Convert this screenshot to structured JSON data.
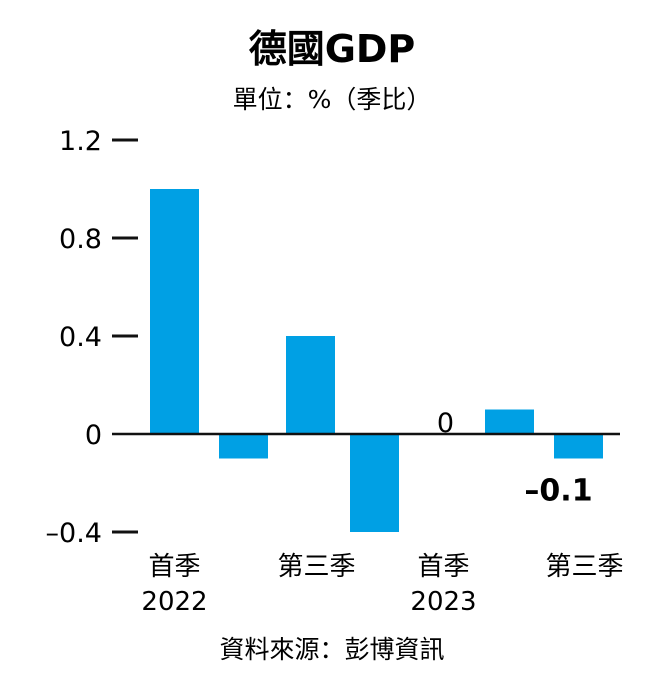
{
  "chart_data": {
    "type": "bar",
    "title": "德國GDP",
    "subtitle": "單位：%（季比）",
    "categories": [
      "2022 Q1",
      "2022 Q2",
      "2022 Q3",
      "2022 Q4",
      "2023 Q1",
      "2023 Q2",
      "2023 Q3"
    ],
    "values": [
      1.0,
      -0.1,
      0.4,
      -0.4,
      0,
      0.1,
      -0.1
    ],
    "tick_labels_x": [
      {
        "index": 0,
        "line1": "首季",
        "line2": "2022"
      },
      {
        "index": 2,
        "line1": "第三季",
        "line2": ""
      },
      {
        "index": 4,
        "line1": "首季",
        "line2": "2023"
      },
      {
        "index": 6,
        "line1": "第三季",
        "line2": ""
      }
    ],
    "yticks": [
      1.2,
      0.8,
      0.4,
      0,
      -0.4
    ],
    "ytick_labels": [
      "1.2",
      "0.8",
      "0.4",
      "0",
      "–0.4"
    ],
    "ylim": [
      -0.4,
      1.2
    ],
    "data_labels": [
      {
        "index": 4,
        "text": "0",
        "bold": false
      },
      {
        "index": 6,
        "text": "–0.1",
        "bold": true
      }
    ],
    "source": "資料來源：彭博資訊",
    "bar_color": "#00a0e4",
    "grid": false
  }
}
